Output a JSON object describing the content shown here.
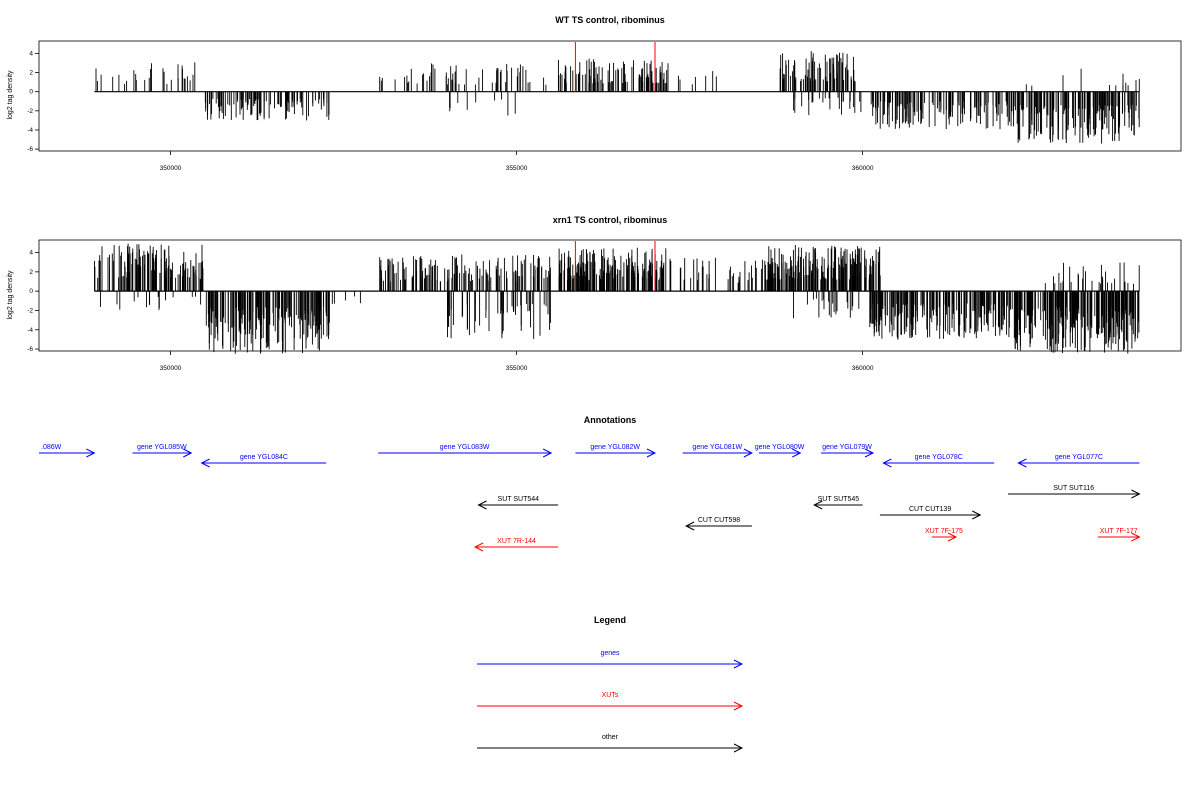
{
  "colors": {
    "genes": "#0000ff",
    "XUTs": "#ff0000",
    "other": "#000000",
    "density": "#000000",
    "marker": "#ff0000"
  },
  "axis_tick_labels": [
    "350000",
    "355000",
    "360000"
  ],
  "y_tick_labels": [
    "4",
    "2",
    "0",
    "-2",
    "-4",
    "-6"
  ],
  "chart_data": [
    {
      "type": "bar",
      "title": "WT TS control, ribominus",
      "ylabel": "log2 tag density",
      "xlim": [
        348100,
        364600
      ],
      "ylim": [
        -6.2,
        5.3
      ],
      "x_ticks": [
        350000,
        355000,
        360000
      ],
      "y_ticks": [
        4,
        2,
        0,
        -2,
        -4,
        -6
      ],
      "markers": [
        355850,
        357000
      ],
      "grid": false,
      "segments": [
        {
          "from": 348900,
          "to": 350500,
          "sign": 1,
          "density": 0.25,
          "max": 3.2
        },
        {
          "from": 350500,
          "to": 352300,
          "sign": -1,
          "density": 0.9,
          "max": 3.0
        },
        {
          "from": 353000,
          "to": 355300,
          "sign": 1,
          "density": 0.35,
          "max": 3.0
        },
        {
          "from": 354000,
          "to": 355000,
          "sign": -1,
          "density": 0.15,
          "max": 2.6
        },
        {
          "from": 355300,
          "to": 356100,
          "sign": 1,
          "density": 0.2,
          "max": 2.8
        },
        {
          "from": 355600,
          "to": 357200,
          "sign": 1,
          "density": 0.9,
          "max": 3.5
        },
        {
          "from": 357300,
          "to": 358000,
          "sign": 1,
          "density": 0.15,
          "max": 2.2
        },
        {
          "from": 358800,
          "to": 359900,
          "sign": 1,
          "density": 1.0,
          "max": 4.3
        },
        {
          "from": 359000,
          "to": 360000,
          "sign": -1,
          "density": 0.35,
          "max": 2.5
        },
        {
          "from": 360100,
          "to": 362200,
          "sign": -1,
          "density": 0.9,
          "max": 4.0
        },
        {
          "from": 362200,
          "to": 364000,
          "sign": -1,
          "density": 1.2,
          "max": 5.5
        },
        {
          "from": 362200,
          "to": 364000,
          "sign": 1,
          "density": 0.1,
          "max": 2.5
        }
      ]
    },
    {
      "type": "bar",
      "title": "xrn1 TS control, ribominus",
      "ylabel": "log2 tag density",
      "xlim": [
        348100,
        364600
      ],
      "ylim": [
        -6.2,
        5.3
      ],
      "x_ticks": [
        350000,
        355000,
        360000
      ],
      "y_ticks": [
        4,
        2,
        0,
        -2,
        -4,
        -6
      ],
      "markers": [
        355850,
        357000
      ],
      "grid": false,
      "segments": [
        {
          "from": 348900,
          "to": 350500,
          "sign": 1,
          "density": 1.2,
          "max": 5.0
        },
        {
          "from": 348900,
          "to": 350500,
          "sign": -1,
          "density": 0.15,
          "max": 2.0
        },
        {
          "from": 350500,
          "to": 352300,
          "sign": -1,
          "density": 1.5,
          "max": 6.5
        },
        {
          "from": 352300,
          "to": 353000,
          "sign": -1,
          "density": 0.1,
          "max": 1.5
        },
        {
          "from": 353000,
          "to": 355500,
          "sign": 1,
          "density": 0.8,
          "max": 3.8
        },
        {
          "from": 354000,
          "to": 355500,
          "sign": -1,
          "density": 0.5,
          "max": 5.0
        },
        {
          "from": 355600,
          "to": 357200,
          "sign": 1,
          "density": 1.6,
          "max": 4.5
        },
        {
          "from": 357200,
          "to": 358600,
          "sign": 1,
          "density": 0.4,
          "max": 3.5
        },
        {
          "from": 358600,
          "to": 360300,
          "sign": 1,
          "density": 1.6,
          "max": 4.8
        },
        {
          "from": 359000,
          "to": 360000,
          "sign": -1,
          "density": 0.3,
          "max": 3.0
        },
        {
          "from": 360100,
          "to": 362200,
          "sign": -1,
          "density": 1.4,
          "max": 5.0
        },
        {
          "from": 362200,
          "to": 364000,
          "sign": -1,
          "density": 1.8,
          "max": 6.5
        },
        {
          "from": 362500,
          "to": 364000,
          "sign": 1,
          "density": 0.3,
          "max": 3.0
        }
      ]
    }
  ],
  "annotations": {
    "title": "Annotations",
    "features": [
      {
        "label": ".086W",
        "kind": "genes",
        "strand": "+",
        "start": 348100,
        "end": 348900,
        "row": 0
      },
      {
        "label": "gene YGL085W",
        "kind": "genes",
        "strand": "+",
        "start": 349450,
        "end": 350300,
        "row": 0
      },
      {
        "label": "gene YGL084C",
        "kind": "genes",
        "strand": "-",
        "start": 350450,
        "end": 352250,
        "row": 1
      },
      {
        "label": "gene YGL083W",
        "kind": "genes",
        "strand": "+",
        "start": 353000,
        "end": 355500,
        "row": 0
      },
      {
        "label": "gene YGL082W",
        "kind": "genes",
        "strand": "+",
        "start": 355850,
        "end": 357000,
        "row": 0
      },
      {
        "label": "gene YGL081W",
        "kind": "genes",
        "strand": "+",
        "start": 357400,
        "end": 358400,
        "row": 0
      },
      {
        "label": "gene YGL080W",
        "kind": "genes",
        "strand": "+",
        "start": 358500,
        "end": 359100,
        "row": 0
      },
      {
        "label": "gene YGL079W",
        "kind": "genes",
        "strand": "+",
        "start": 359400,
        "end": 360150,
        "row": 0
      },
      {
        "label": "gene YGL078C",
        "kind": "genes",
        "strand": "-",
        "start": 360300,
        "end": 361900,
        "row": 1
      },
      {
        "label": "gene YGL077C",
        "kind": "genes",
        "strand": "-",
        "start": 362250,
        "end": 364000,
        "row": 1
      },
      {
        "label": "SUT SUT544",
        "kind": "other",
        "strand": "-",
        "start": 354450,
        "end": 355600,
        "row": 2
      },
      {
        "label": "SUT SUT545",
        "kind": "other",
        "strand": "-",
        "start": 359300,
        "end": 360000,
        "row": 2
      },
      {
        "label": "SUT SUT116",
        "kind": "other",
        "strand": "+",
        "start": 362100,
        "end": 364000,
        "row": 3
      },
      {
        "label": "CUT CUT598",
        "kind": "other",
        "strand": "-",
        "start": 357450,
        "end": 358400,
        "row": 4
      },
      {
        "label": "CUT CUT139",
        "kind": "other",
        "strand": "+",
        "start": 360250,
        "end": 361700,
        "row": 5
      },
      {
        "label": "XUT 7R-144",
        "kind": "XUTs",
        "strand": "-",
        "start": 354400,
        "end": 355600,
        "row": 6
      },
      {
        "label": "XUT 7F-175",
        "kind": "XUTs",
        "strand": "+",
        "start": 361000,
        "end": 361350,
        "row": 7
      },
      {
        "label": "XUT 7F-177",
        "kind": "XUTs",
        "strand": "+",
        "start": 363400,
        "end": 364000,
        "row": 7
      }
    ]
  },
  "legend": {
    "title": "Legend",
    "items": [
      {
        "label": "genes",
        "kind": "genes"
      },
      {
        "label": "XUTs",
        "kind": "XUTs"
      },
      {
        "label": "other",
        "kind": "other"
      }
    ]
  }
}
